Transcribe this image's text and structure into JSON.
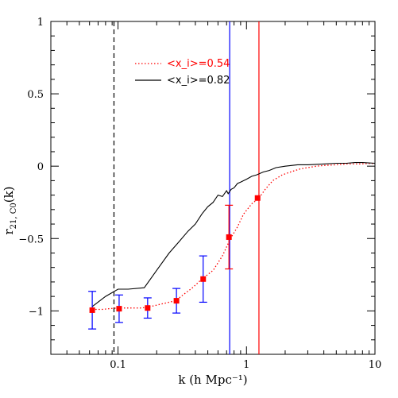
{
  "chart_data": {
    "type": "line",
    "x_scale": "log",
    "xlim": [
      0.03,
      10
    ],
    "ylim": [
      -1.3,
      1
    ],
    "xlabel": "k (h Mpc⁻¹)",
    "ylabel_main": "r",
    "ylabel_sub": "21, C0",
    "ylabel_tail": "(k)",
    "x_ticks": [
      0.1,
      1,
      10
    ],
    "x_tick_labels": [
      "0.1",
      "1",
      "10"
    ],
    "y_ticks": [
      -1,
      -0.5,
      0,
      0.5,
      1
    ],
    "y_tick_labels": [
      "−1",
      "−0.5",
      "0",
      "0.5",
      "1"
    ],
    "legend": {
      "position": "top-left",
      "entries": [
        {
          "label": "<x_i>=0.54",
          "color": "#ff0000",
          "style": "dotted"
        },
        {
          "label": "<x_i>=0.82",
          "color": "#000000",
          "style": "solid"
        }
      ]
    },
    "series": [
      {
        "name": "<x_i>=0.54",
        "color": "#ff0000",
        "style": "dotted",
        "x": [
          0.063,
          0.075,
          0.085,
          0.1,
          0.12,
          0.15,
          0.17,
          0.2,
          0.25,
          0.28,
          0.32,
          0.38,
          0.45,
          0.55,
          0.65,
          0.75,
          0.85,
          0.95,
          1.1,
          1.25,
          1.4,
          1.6,
          1.9,
          2.2,
          2.6,
          3.0,
          3.5,
          4.0,
          5.0,
          6.0,
          7.5,
          10.0
        ],
        "y": [
          -0.99,
          -0.99,
          -0.985,
          -0.98,
          -0.98,
          -0.98,
          -0.975,
          -0.96,
          -0.94,
          -0.93,
          -0.89,
          -0.84,
          -0.78,
          -0.72,
          -0.62,
          -0.5,
          -0.42,
          -0.33,
          -0.26,
          -0.22,
          -0.16,
          -0.1,
          -0.06,
          -0.04,
          -0.02,
          -0.01,
          0.0,
          0.005,
          0.01,
          0.015,
          0.015,
          0.02
        ]
      },
      {
        "name": "<x_i>=0.82",
        "color": "#000000",
        "style": "solid",
        "x": [
          0.063,
          0.08,
          0.1,
          0.12,
          0.16,
          0.2,
          0.25,
          0.3,
          0.35,
          0.4,
          0.45,
          0.5,
          0.55,
          0.6,
          0.65,
          0.7,
          0.72,
          0.76,
          0.8,
          0.85,
          0.9,
          0.95,
          1.0,
          1.1,
          1.2,
          1.35,
          1.5,
          1.7,
          2.0,
          2.5,
          3.0,
          4.0,
          5.0,
          6.0,
          7.0,
          8.0,
          10.0
        ],
        "y": [
          -0.97,
          -0.9,
          -0.85,
          -0.85,
          -0.84,
          -0.72,
          -0.6,
          -0.52,
          -0.45,
          -0.4,
          -0.33,
          -0.28,
          -0.25,
          -0.2,
          -0.21,
          -0.17,
          -0.19,
          -0.16,
          -0.15,
          -0.12,
          -0.11,
          -0.1,
          -0.09,
          -0.07,
          -0.06,
          -0.04,
          -0.03,
          -0.01,
          0.0,
          0.01,
          0.01,
          0.015,
          0.02,
          0.02,
          0.025,
          0.025,
          0.02
        ]
      }
    ],
    "points_with_errors": {
      "series": "<x_i>=0.54",
      "marker_color": "#ff0000",
      "error_color_low_k": "#0000ff",
      "error_color_high_k": "#ff0000",
      "points": [
        {
          "x": 0.063,
          "y": -0.995,
          "err": 0.13
        },
        {
          "x": 0.102,
          "y": -0.985,
          "err": 0.095
        },
        {
          "x": 0.17,
          "y": -0.98,
          "err": 0.07
        },
        {
          "x": 0.285,
          "y": -0.93,
          "err": 0.085
        },
        {
          "x": 0.46,
          "y": -0.78,
          "err": 0.16
        },
        {
          "x": 0.73,
          "y": -0.49,
          "err": 0.22
        },
        {
          "x": 1.22,
          "y": -0.22,
          "err": 0.0
        }
      ]
    },
    "vertical_lines": [
      {
        "x": 0.093,
        "color": "#000000",
        "style": "dashed"
      },
      {
        "x": 0.74,
        "color": "#0000ff",
        "style": "solid"
      },
      {
        "x": 1.25,
        "color": "#ff0000",
        "style": "solid"
      }
    ]
  }
}
